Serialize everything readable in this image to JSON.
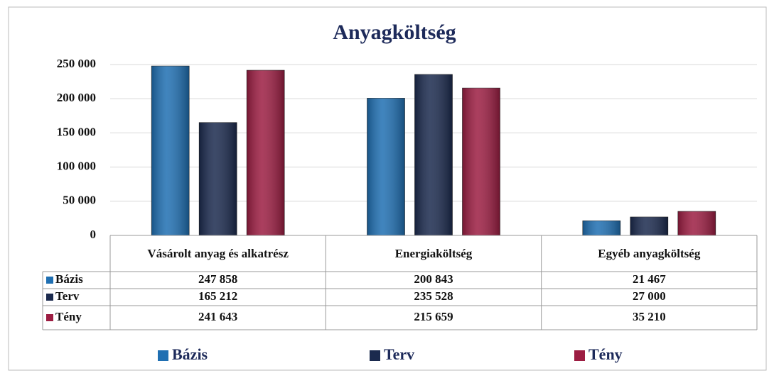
{
  "chart_data": {
    "type": "bar",
    "title": "Anyagköltség",
    "categories": [
      "Vásárolt anyag és alkatrész",
      "Energiaköltség",
      "Egyéb anyagköltség"
    ],
    "series": [
      {
        "name": "Bázis",
        "color": "#1f6fb2",
        "values": [
          247858,
          200843,
          21467
        ],
        "value_labels": [
          "247 858",
          "200 843",
          "21 467"
        ]
      },
      {
        "name": "Terv",
        "color": "#1b2a4e",
        "values": [
          165212,
          235528,
          27000
        ],
        "value_labels": [
          "165 212",
          "235 528",
          "27 000"
        ]
      },
      {
        "name": "Tény",
        "color": "#9c1d42",
        "values": [
          241643,
          215659,
          35210
        ],
        "value_labels": [
          "241 643",
          "215 659",
          "35 210"
        ]
      }
    ],
    "ylim": [
      0,
      250000
    ],
    "yticks": [
      0,
      {
        "value": 50000,
        "label": "50 000"
      },
      {
        "value": 100000,
        "label": "100 000"
      },
      {
        "value": 150000,
        "label": "150 000"
      },
      {
        "value": 200000,
        "label": "200 000"
      },
      {
        "value": 250000,
        "label": "250 000"
      }
    ],
    "grid": true,
    "legend": "bottom"
  }
}
